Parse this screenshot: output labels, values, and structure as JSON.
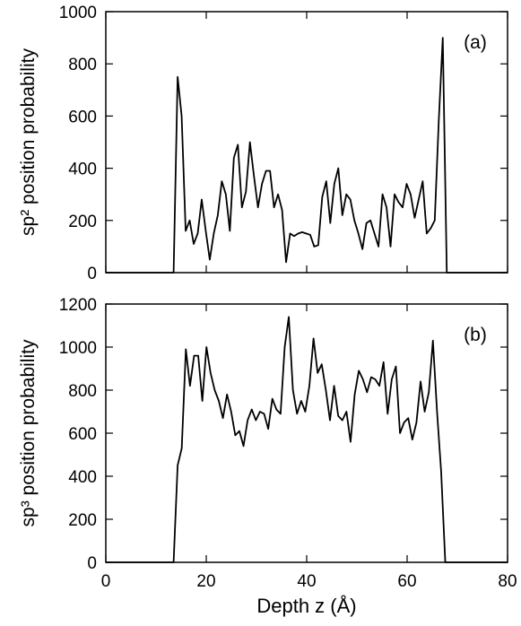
{
  "chart_data": [
    {
      "type": "line",
      "ylabel": "sp² position probability",
      "annotation": "(a)",
      "xlim": [
        0,
        80
      ],
      "xticks": [
        0,
        20,
        40,
        60,
        80
      ],
      "ylim": [
        0,
        1000
      ],
      "yticks": [
        0,
        200,
        400,
        600,
        800,
        1000
      ],
      "x": [
        0,
        13.5,
        14.3,
        15.1,
        15.9,
        16.7,
        17.5,
        18.3,
        19.1,
        19.9,
        20.7,
        21.5,
        22.3,
        23.1,
        23.9,
        24.7,
        25.5,
        26.3,
        27.1,
        27.9,
        28.7,
        29.5,
        30.3,
        31.1,
        31.9,
        32.7,
        33.5,
        34.3,
        35.1,
        35.9,
        36.7,
        37.5,
        38.3,
        39.1,
        39.9,
        40.7,
        41.5,
        42.3,
        43.1,
        43.9,
        44.7,
        45.5,
        46.3,
        47.1,
        47.9,
        48.7,
        49.5,
        50.3,
        51.1,
        51.9,
        52.7,
        53.5,
        54.3,
        55.1,
        55.9,
        56.7,
        57.5,
        58.3,
        59.1,
        59.9,
        60.7,
        61.5,
        62.3,
        63.1,
        63.9,
        64.7,
        65.5,
        66.3,
        67.1,
        67.9,
        80
      ],
      "series": [
        {
          "color": "#000000",
          "values": [
            0,
            0,
            750,
            600,
            160,
            200,
            110,
            150,
            280,
            160,
            50,
            150,
            220,
            350,
            300,
            160,
            440,
            490,
            250,
            310,
            500,
            370,
            250,
            340,
            390,
            390,
            250,
            300,
            240,
            40,
            150,
            140,
            150,
            155,
            150,
            145,
            100,
            105,
            290,
            350,
            190,
            340,
            400,
            220,
            300,
            280,
            200,
            150,
            90,
            190,
            200,
            150,
            100,
            300,
            250,
            100,
            300,
            270,
            250,
            340,
            300,
            210,
            280,
            350,
            150,
            170,
            200,
            580,
            900,
            0,
            0
          ]
        }
      ]
    },
    {
      "type": "line",
      "ylabel": "sp³ position probability",
      "annotation": "(b)",
      "xlabel": "Depth z (Å)",
      "xlim": [
        0,
        80
      ],
      "xticks": [
        0,
        20,
        40,
        60,
        80
      ],
      "ylim": [
        0,
        1200
      ],
      "yticks": [
        0,
        200,
        400,
        600,
        800,
        1000,
        1200
      ],
      "x": [
        0,
        13.5,
        14.3,
        15.12,
        15.94,
        16.76,
        17.58,
        18.4,
        19.22,
        20.04,
        20.86,
        21.68,
        22.5,
        23.32,
        24.14,
        24.96,
        25.78,
        26.6,
        27.42,
        28.24,
        29.06,
        29.88,
        30.7,
        31.52,
        32.34,
        33.16,
        33.98,
        34.8,
        35.62,
        36.44,
        37.26,
        38.08,
        38.9,
        39.72,
        40.54,
        41.36,
        42.18,
        43,
        43.82,
        44.64,
        45.46,
        46.28,
        47.1,
        47.92,
        48.74,
        49.56,
        50.38,
        51.2,
        52.02,
        52.84,
        53.66,
        54.48,
        55.3,
        56.12,
        56.94,
        57.76,
        58.58,
        59.4,
        60.22,
        61.04,
        61.86,
        62.68,
        63.5,
        64.32,
        65.14,
        65.96,
        66.78,
        67.6,
        80
      ],
      "series": [
        {
          "color": "#000000",
          "values": [
            0,
            0,
            450,
            530,
            990,
            820,
            960,
            960,
            750,
            1000,
            880,
            800,
            750,
            670,
            780,
            700,
            590,
            610,
            540,
            660,
            710,
            660,
            700,
            690,
            620,
            760,
            710,
            690,
            1000,
            1140,
            800,
            690,
            750,
            700,
            820,
            1040,
            880,
            920,
            800,
            660,
            820,
            680,
            660,
            700,
            560,
            780,
            890,
            850,
            790,
            860,
            850,
            820,
            930,
            690,
            850,
            910,
            600,
            650,
            670,
            570,
            650,
            840,
            700,
            790,
            1030,
            700,
            420,
            0,
            0
          ]
        }
      ]
    }
  ]
}
